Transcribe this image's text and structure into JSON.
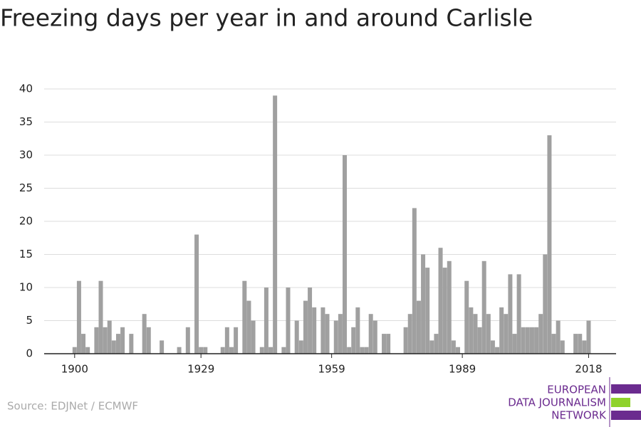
{
  "chart_data": {
    "type": "bar",
    "title": "Freezing days per year in and around Carlisle",
    "x": [
      1900,
      1901,
      1902,
      1903,
      1904,
      1905,
      1906,
      1907,
      1908,
      1909,
      1910,
      1911,
      1912,
      1913,
      1914,
      1915,
      1916,
      1917,
      1918,
      1919,
      1920,
      1921,
      1922,
      1923,
      1924,
      1925,
      1926,
      1927,
      1928,
      1929,
      1930,
      1931,
      1932,
      1933,
      1934,
      1935,
      1936,
      1937,
      1938,
      1939,
      1940,
      1941,
      1942,
      1943,
      1944,
      1945,
      1946,
      1947,
      1948,
      1949,
      1950,
      1951,
      1952,
      1953,
      1954,
      1955,
      1956,
      1957,
      1958,
      1959,
      1960,
      1961,
      1962,
      1963,
      1964,
      1965,
      1966,
      1967,
      1968,
      1969,
      1970,
      1971,
      1972,
      1973,
      1974,
      1975,
      1976,
      1977,
      1978,
      1979,
      1980,
      1981,
      1982,
      1983,
      1984,
      1985,
      1986,
      1987,
      1988,
      1989,
      1990,
      1991,
      1992,
      1993,
      1994,
      1995,
      1996,
      1997,
      1998,
      1999,
      2000,
      2001,
      2002,
      2003,
      2004,
      2005,
      2006,
      2007,
      2008,
      2009,
      2010,
      2011,
      2012,
      2013,
      2014,
      2015,
      2016,
      2017,
      2018
    ],
    "values": [
      1,
      11,
      3,
      1,
      0,
      4,
      11,
      4,
      5,
      2,
      3,
      4,
      0,
      3,
      0,
      0,
      6,
      4,
      0,
      0,
      2,
      0,
      0,
      0,
      1,
      0,
      4,
      0,
      18,
      1,
      1,
      0,
      0,
      0,
      1,
      4,
      1,
      4,
      0,
      11,
      8,
      5,
      0,
      1,
      10,
      1,
      39,
      0,
      1,
      10,
      0,
      5,
      2,
      8,
      10,
      7,
      0,
      7,
      6,
      0,
      5,
      6,
      30,
      1,
      4,
      7,
      1,
      1,
      6,
      5,
      0,
      3,
      3,
      0,
      0,
      0,
      4,
      6,
      22,
      8,
      15,
      13,
      2,
      3,
      16,
      13,
      14,
      2,
      1,
      0,
      11,
      7,
      6,
      4,
      14,
      6,
      2,
      1,
      7,
      6,
      12,
      3,
      12,
      4,
      4,
      4,
      4,
      6,
      15,
      33,
      3,
      5,
      2,
      0,
      0,
      3,
      3,
      2,
      5
    ],
    "color": "#a0a0a0",
    "xlim": [
      1893,
      2024.3
    ],
    "xticks": [
      1900,
      1929,
      1959,
      1989,
      2018
    ],
    "ylim": [
      0,
      40
    ],
    "yticks": [
      0,
      5,
      10,
      15,
      20,
      25,
      30,
      35,
      40
    ],
    "grid": true,
    "source": "Source: EDJNet / ECMWF"
  },
  "logo": {
    "lines": [
      "EUROPEAN",
      "DATA JOURNALISM",
      "NETWORK"
    ]
  }
}
